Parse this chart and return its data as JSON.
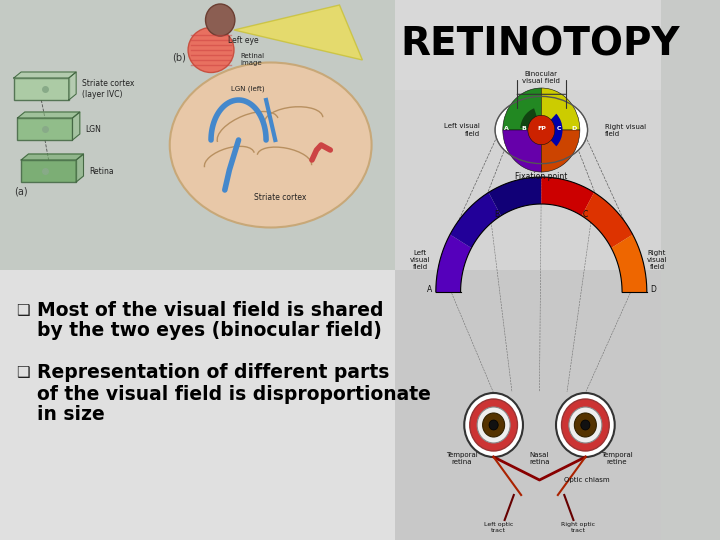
{
  "title": "RETINOTOPY",
  "title_fontsize": 28,
  "title_fontweight": "bold",
  "title_color": "#000000",
  "bullet_fontsize": 13.5,
  "bullet_color": "#000000",
  "bullet1_line1": "Most of the visual field is shared",
  "bullet1_line2": "by the two eyes (binocular field)",
  "bullet2_line1": "Representation of different parts",
  "bullet2_line2": "of the visual field is disproportionate",
  "bullet2_line3": "in size",
  "bg_upper_left": "#c8cfc8",
  "bg_upper_right_diagram": "#d8d8d8",
  "bg_lower_left": "#dcdcdc",
  "bg_lower_right": "#c8c8c8",
  "title_box_color": "#d8d8d8",
  "arc_colors": [
    "#5500aa",
    "#220088",
    "#cc0000",
    "#dd2200",
    "#cc4400",
    "#ee6600"
  ],
  "wedge_colors_circle": [
    "#228800",
    "#004400",
    "#cccc00",
    "#6600aa",
    "#cc4400",
    "#cc0000"
  ],
  "eye_outline": "#cc0000",
  "slide_bg": "#c8cac8"
}
